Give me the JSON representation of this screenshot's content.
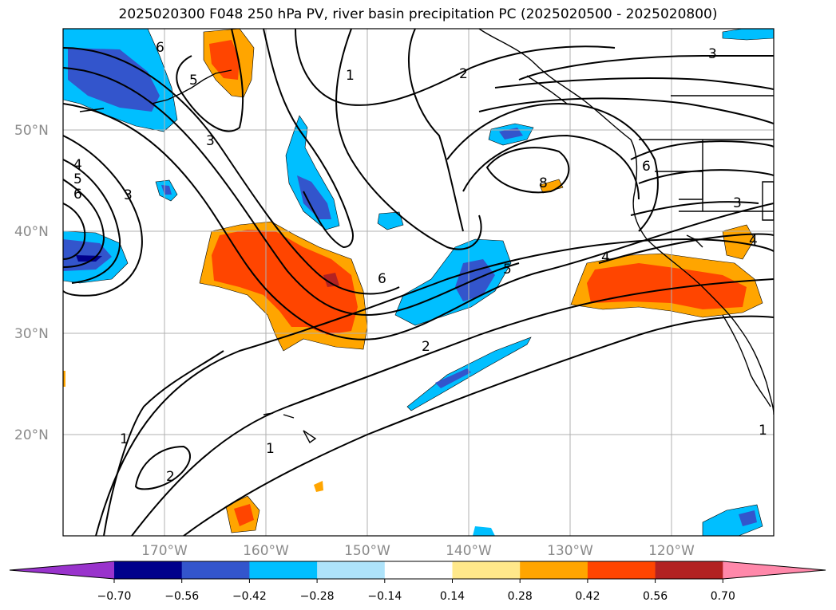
{
  "title": "2025020300 F048 250 hPa PV, river basin precipitation PC (2025020500 - 2025020800)",
  "map": {
    "lat_labels": [
      "50°N",
      "40°N",
      "30°N",
      "20°N"
    ],
    "lon_labels": [
      "170°W",
      "160°W",
      "150°W",
      "140°W",
      "130°W",
      "120°W"
    ],
    "contour_labels": [
      "1",
      "2",
      "3",
      "4",
      "5",
      "6",
      "8"
    ]
  },
  "colorbar": {
    "ticks": [
      "−0.70",
      "−0.56",
      "−0.42",
      "−0.28",
      "−0.14",
      "0.14",
      "0.28",
      "0.42",
      "0.56",
      "0.70"
    ],
    "colors": [
      "#9933cc",
      "#00008b",
      "#3355cc",
      "#00bfff",
      "#aee3fa",
      "#ffffff",
      "#ffe88a",
      "#ffa500",
      "#ff4500",
      "#b22222",
      "#ff88aa"
    ]
  }
}
